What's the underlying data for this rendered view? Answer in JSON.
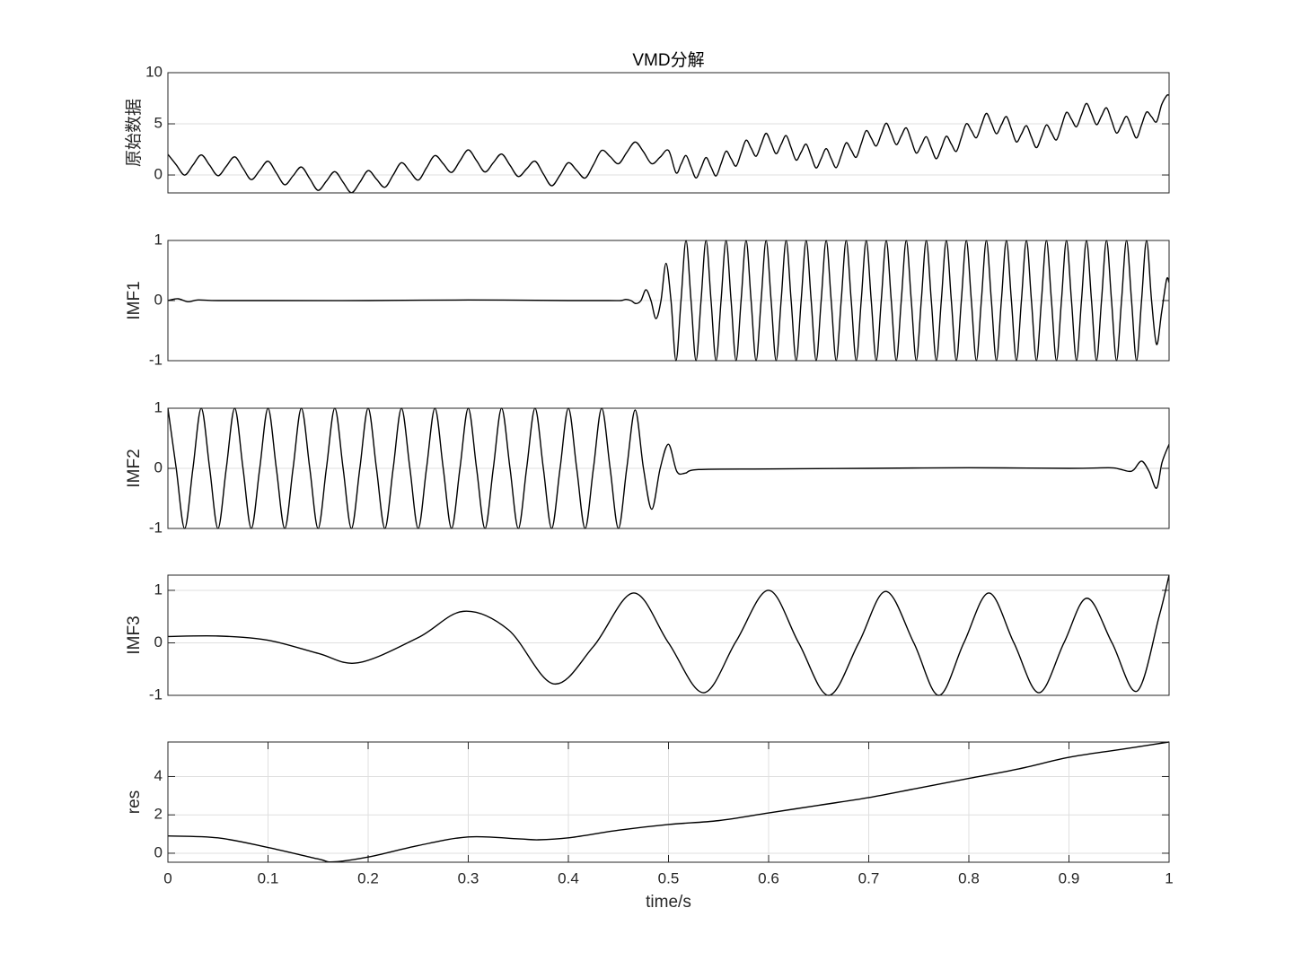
{
  "chart_data": [
    {
      "type": "line",
      "title": "VMD分解",
      "ylabel": "原始数据",
      "xlim": [
        0,
        1
      ],
      "ylim": [
        -1.75,
        10
      ],
      "yticks": [
        0,
        5,
        10
      ],
      "ygrid": true,
      "color": "#000000",
      "x": [
        0,
        0.0083,
        0.0167,
        0.025,
        0.0333,
        0.0417,
        0.05,
        0.0583,
        0.0667,
        0.075,
        0.0833,
        0.0917,
        0.1,
        0.1083,
        0.1167,
        0.125,
        0.1333,
        0.1417,
        0.15,
        0.1583,
        0.1667,
        0.175,
        0.1833,
        0.1917,
        0.2,
        0.2083,
        0.2167,
        0.225,
        0.2333,
        0.2417,
        0.25,
        0.2583,
        0.2667,
        0.275,
        0.2833,
        0.2917,
        0.3,
        0.3083,
        0.3167,
        0.325,
        0.3333,
        0.3417,
        0.35,
        0.3583,
        0.3667,
        0.375,
        0.3833,
        0.3917,
        0.4,
        0.4083,
        0.4167,
        0.425,
        0.4333,
        0.4417,
        0.45,
        0.4583,
        0.4667,
        0.475,
        0.4833,
        0.4917,
        0.5,
        0.5075,
        0.5125,
        0.5175,
        0.5225,
        0.5275,
        0.5325,
        0.5375,
        0.5425,
        0.5475,
        0.5525,
        0.5575,
        0.5625,
        0.5675,
        0.5725,
        0.5775,
        0.5825,
        0.5875,
        0.5925,
        0.5975,
        0.6025,
        0.6075,
        0.6125,
        0.6175,
        0.6225,
        0.6275,
        0.6325,
        0.6375,
        0.6425,
        0.6475,
        0.6525,
        0.6575,
        0.6625,
        0.6675,
        0.6725,
        0.6775,
        0.6825,
        0.6875,
        0.6925,
        0.6975,
        0.7025,
        0.7075,
        0.7125,
        0.7175,
        0.7225,
        0.7275,
        0.7325,
        0.7375,
        0.7425,
        0.7475,
        0.7525,
        0.7575,
        0.7625,
        0.7675,
        0.7725,
        0.7775,
        0.7825,
        0.7875,
        0.7925,
        0.7975,
        0.8025,
        0.8075,
        0.8125,
        0.8175,
        0.8225,
        0.8275,
        0.8325,
        0.8375,
        0.8425,
        0.8475,
        0.8525,
        0.8575,
        0.8625,
        0.8675,
        0.8725,
        0.8775,
        0.8825,
        0.8875,
        0.8925,
        0.8975,
        0.9025,
        0.9075,
        0.9125,
        0.9175,
        0.9225,
        0.9275,
        0.9325,
        0.9375,
        0.9425,
        0.9475,
        0.9525,
        0.9575,
        0.9625,
        0.9675,
        0.9725,
        0.9775,
        0.9825,
        0.9875,
        0.9925,
        0.9975,
        1
      ],
      "values": [
        2.02,
        1.0,
        -0.01,
        0.97,
        1.96,
        0.95,
        -0.07,
        0.85,
        1.77,
        0.66,
        -0.45,
        0.45,
        1.35,
        0.2,
        -0.95,
        -0.08,
        0.78,
        -0.36,
        -1.5,
        -0.6,
        0.33,
        -0.71,
        -1.73,
        -0.72,
        0.43,
        -0.4,
        -1.2,
        0.0,
        1.2,
        0.35,
        -0.5,
        0.7,
        1.9,
        1.1,
        0.25,
        1.38,
        2.45,
        1.4,
        0.3,
        1.2,
        2.05,
        0.95,
        -0.15,
        0.6,
        1.35,
        0.1,
        -1.05,
        0.0,
        1.2,
        0.45,
        -0.3,
        1.0,
        2.4,
        1.8,
        1.1,
        2.2,
        3.22,
        2.27,
        1.1,
        1.75,
        2.4,
        0.22,
        1.05,
        1.9,
        0.78,
        -0.29,
        0.69,
        1.71,
        0.78,
        -0.09,
        1.1,
        2.33,
        1.59,
        0.87,
        2.14,
        3.4,
        2.63,
        1.83,
        2.98,
        4.07,
        3.11,
        2.08,
        2.99,
        3.85,
        2.66,
        1.45,
        2.23,
        3.02,
        1.83,
        0.69,
        1.6,
        2.57,
        1.61,
        0.72,
        1.91,
        3.15,
        2.43,
        1.73,
        3.05,
        4.34,
        3.61,
        2.83,
        3.98,
        5.06,
        4.06,
        2.97,
        3.82,
        4.61,
        3.38,
        2.14,
        2.92,
        3.74,
        2.63,
        1.59,
        2.64,
        3.79,
        3.02,
        2.31,
        3.65,
        5.01,
        4.35,
        3.64,
        4.87,
        6.02,
        5.07,
        4.03,
        4.9,
        5.71,
        4.48,
        3.23,
        4.0,
        4.82,
        3.7,
        2.67,
        3.73,
        4.89,
        4.13,
        3.43,
        4.77,
        6.12,
        5.45,
        4.71,
        5.89,
        6.99,
        6.0,
        4.92,
        5.77,
        6.57,
        5.33,
        4.1,
        4.89,
        5.73,
        4.63,
        3.62,
        4.89,
        6.15,
        5.69,
        5.2,
        6.85,
        7.75,
        7.8
      ]
    },
    {
      "type": "line",
      "ylabel": "IMF1",
      "xlim": [
        0,
        1
      ],
      "ylim": [
        -1,
        1
      ],
      "yticks": [
        -1,
        0,
        1
      ],
      "ygrid": true,
      "color": "#000000",
      "x": [
        0,
        0.01,
        0.02,
        0.03,
        0.05,
        0.1,
        0.2,
        0.3,
        0.4,
        0.44,
        0.4525,
        0.4575,
        0.4625,
        0.4675,
        0.4725,
        0.4775,
        0.4825,
        0.4875,
        0.4925,
        0.4975,
        0.5025,
        0.5075,
        0.5125,
        0.5175,
        0.5225,
        0.5275,
        0.5325,
        0.5375,
        0.5425,
        0.5475,
        0.5525,
        0.5575,
        0.5625,
        0.5675,
        0.5725,
        0.5775,
        0.5825,
        0.5875,
        0.5925,
        0.5975,
        0.6025,
        0.6075,
        0.6125,
        0.6175,
        0.6225,
        0.6275,
        0.6325,
        0.6375,
        0.6425,
        0.6475,
        0.6525,
        0.6575,
        0.6625,
        0.6675,
        0.6725,
        0.6775,
        0.6825,
        0.6875,
        0.6925,
        0.6975,
        0.7025,
        0.7075,
        0.7125,
        0.7175,
        0.7225,
        0.7275,
        0.7325,
        0.7375,
        0.7425,
        0.7475,
        0.7525,
        0.7575,
        0.7625,
        0.7675,
        0.7725,
        0.7775,
        0.7825,
        0.7875,
        0.7925,
        0.7975,
        0.8025,
        0.8075,
        0.8125,
        0.8175,
        0.8225,
        0.8275,
        0.8325,
        0.8375,
        0.8425,
        0.8475,
        0.8525,
        0.8575,
        0.8625,
        0.8675,
        0.8725,
        0.8775,
        0.8825,
        0.8875,
        0.8925,
        0.8975,
        0.9025,
        0.9075,
        0.9125,
        0.9175,
        0.9225,
        0.9275,
        0.9325,
        0.9375,
        0.9425,
        0.9475,
        0.9525,
        0.9575,
        0.9625,
        0.9675,
        0.9725,
        0.9775,
        0.9825,
        0.9875,
        0.9925,
        0.9975,
        1
      ],
      "values": [
        0,
        0.03,
        -0.02,
        0.01,
        0,
        0,
        0,
        0.01,
        0,
        0,
        0,
        0.02,
        0,
        -0.05,
        0,
        0.18,
        0,
        -0.3,
        0,
        0.62,
        0,
        -1,
        0,
        1,
        0,
        -1,
        0,
        1,
        0,
        -1,
        0,
        1,
        0,
        -1,
        0,
        1,
        0,
        -1,
        0,
        1,
        0,
        -1,
        0,
        1,
        0,
        -1,
        0,
        1,
        0,
        -1,
        0,
        1,
        0,
        -1,
        0,
        1,
        0,
        -1,
        0,
        1,
        0,
        -1,
        0,
        1,
        0,
        -1,
        0,
        1,
        0,
        -1,
        0,
        1,
        0,
        -1,
        0,
        1,
        0,
        -1,
        0,
        1,
        0,
        -1,
        0,
        1,
        0,
        -1,
        0,
        1,
        0,
        -1,
        0,
        1,
        0,
        -1,
        0,
        1,
        0,
        -1,
        0,
        1,
        0,
        -1,
        0,
        1,
        0,
        -1,
        0,
        1,
        0,
        -1,
        0,
        1,
        0,
        -1,
        0,
        1,
        0,
        -0.73,
        -0.2,
        0.35,
        0.3
      ]
    },
    {
      "type": "line",
      "ylabel": "IMF2",
      "xlim": [
        0,
        1
      ],
      "ylim": [
        -1,
        1
      ],
      "yticks": [
        -1,
        0,
        1
      ],
      "ygrid": true,
      "color": "#000000",
      "x": [
        0,
        0.0083,
        0.0167,
        0.025,
        0.0333,
        0.0417,
        0.05,
        0.0583,
        0.0667,
        0.075,
        0.0833,
        0.0917,
        0.1,
        0.1083,
        0.1167,
        0.125,
        0.1333,
        0.1417,
        0.15,
        0.1583,
        0.1667,
        0.175,
        0.1833,
        0.1917,
        0.2,
        0.2083,
        0.2167,
        0.225,
        0.2333,
        0.2417,
        0.25,
        0.2583,
        0.2667,
        0.275,
        0.2833,
        0.2917,
        0.3,
        0.3083,
        0.3167,
        0.325,
        0.3333,
        0.3417,
        0.35,
        0.3583,
        0.3667,
        0.375,
        0.3833,
        0.3917,
        0.4,
        0.4083,
        0.4167,
        0.425,
        0.4333,
        0.4417,
        0.45,
        0.4583,
        0.4667,
        0.475,
        0.4833,
        0.4917,
        0.5,
        0.5083,
        0.5167,
        0.53,
        0.6,
        0.7,
        0.8,
        0.9,
        0.94,
        0.95,
        0.96,
        0.965,
        0.9725,
        0.98,
        0.9875,
        0.993,
        1
      ],
      "values": [
        1,
        0,
        -1,
        0,
        1,
        0,
        -1,
        0,
        1,
        0,
        -1,
        0,
        1,
        0,
        -1,
        0,
        1,
        0,
        -1,
        0,
        1,
        0,
        -1,
        0,
        1,
        0,
        -1,
        0,
        1,
        0,
        -1,
        0,
        1,
        0,
        -1,
        0,
        1,
        0,
        -1,
        0,
        1,
        0,
        -1,
        0,
        1,
        0,
        -1,
        0,
        1,
        0,
        -1,
        0,
        1,
        0,
        -1,
        0,
        0.97,
        0,
        -0.68,
        0,
        0.4,
        -0.05,
        -0.08,
        -0.02,
        -0.01,
        0,
        0.01,
        0,
        0.01,
        -0.01,
        -0.05,
        -0.02,
        0.12,
        -0.05,
        -0.33,
        0.1,
        0.4
      ]
    },
    {
      "type": "line",
      "ylabel": "IMF3",
      "xlim": [
        0,
        1
      ],
      "ylim": [
        -1,
        1.29
      ],
      "yticks": [
        -1,
        0,
        1
      ],
      "ygrid": true,
      "color": "#000000",
      "x": [
        0,
        0.05,
        0.1,
        0.15,
        0.19,
        0.25,
        0.295,
        0.34,
        0.385,
        0.425,
        0.465,
        0.5,
        0.535,
        0.5675,
        0.6,
        0.63,
        0.66,
        0.69,
        0.717,
        0.745,
        0.77,
        0.795,
        0.82,
        0.845,
        0.87,
        0.895,
        0.918,
        0.943,
        0.968,
        0.99,
        1
      ],
      "values": [
        0.12,
        0.13,
        0.05,
        -0.2,
        -0.38,
        0.1,
        0.6,
        0.25,
        -0.78,
        -0.07,
        0.95,
        0,
        -0.95,
        0.03,
        1.0,
        0,
        -1.0,
        0,
        0.98,
        0,
        -1.0,
        0,
        0.95,
        0,
        -0.95,
        0,
        0.85,
        0,
        -0.92,
        0.5,
        1.29
      ]
    },
    {
      "type": "line",
      "ylabel": "res",
      "xlabel": "time/s",
      "xlim": [
        0,
        1
      ],
      "ylim": [
        -0.47,
        5.8
      ],
      "yticks": [
        0,
        2,
        4
      ],
      "ygrid": true,
      "xgrid": true,
      "color": "#000000",
      "xticks": [
        0,
        0.1,
        0.2,
        0.3,
        0.4,
        0.5,
        0.6,
        0.7,
        0.8,
        0.9,
        1
      ],
      "x": [
        0,
        0.05,
        0.1,
        0.15,
        0.165,
        0.2,
        0.25,
        0.3,
        0.35,
        0.37,
        0.4,
        0.45,
        0.5,
        0.55,
        0.6,
        0.65,
        0.7,
        0.75,
        0.8,
        0.85,
        0.9,
        0.95,
        1
      ],
      "values": [
        0.9,
        0.8,
        0.3,
        -0.3,
        -0.45,
        -0.2,
        0.4,
        0.85,
        0.75,
        0.7,
        0.8,
        1.2,
        1.5,
        1.7,
        2.1,
        2.5,
        2.9,
        3.4,
        3.9,
        4.4,
        5.0,
        5.4,
        5.8
      ]
    }
  ]
}
